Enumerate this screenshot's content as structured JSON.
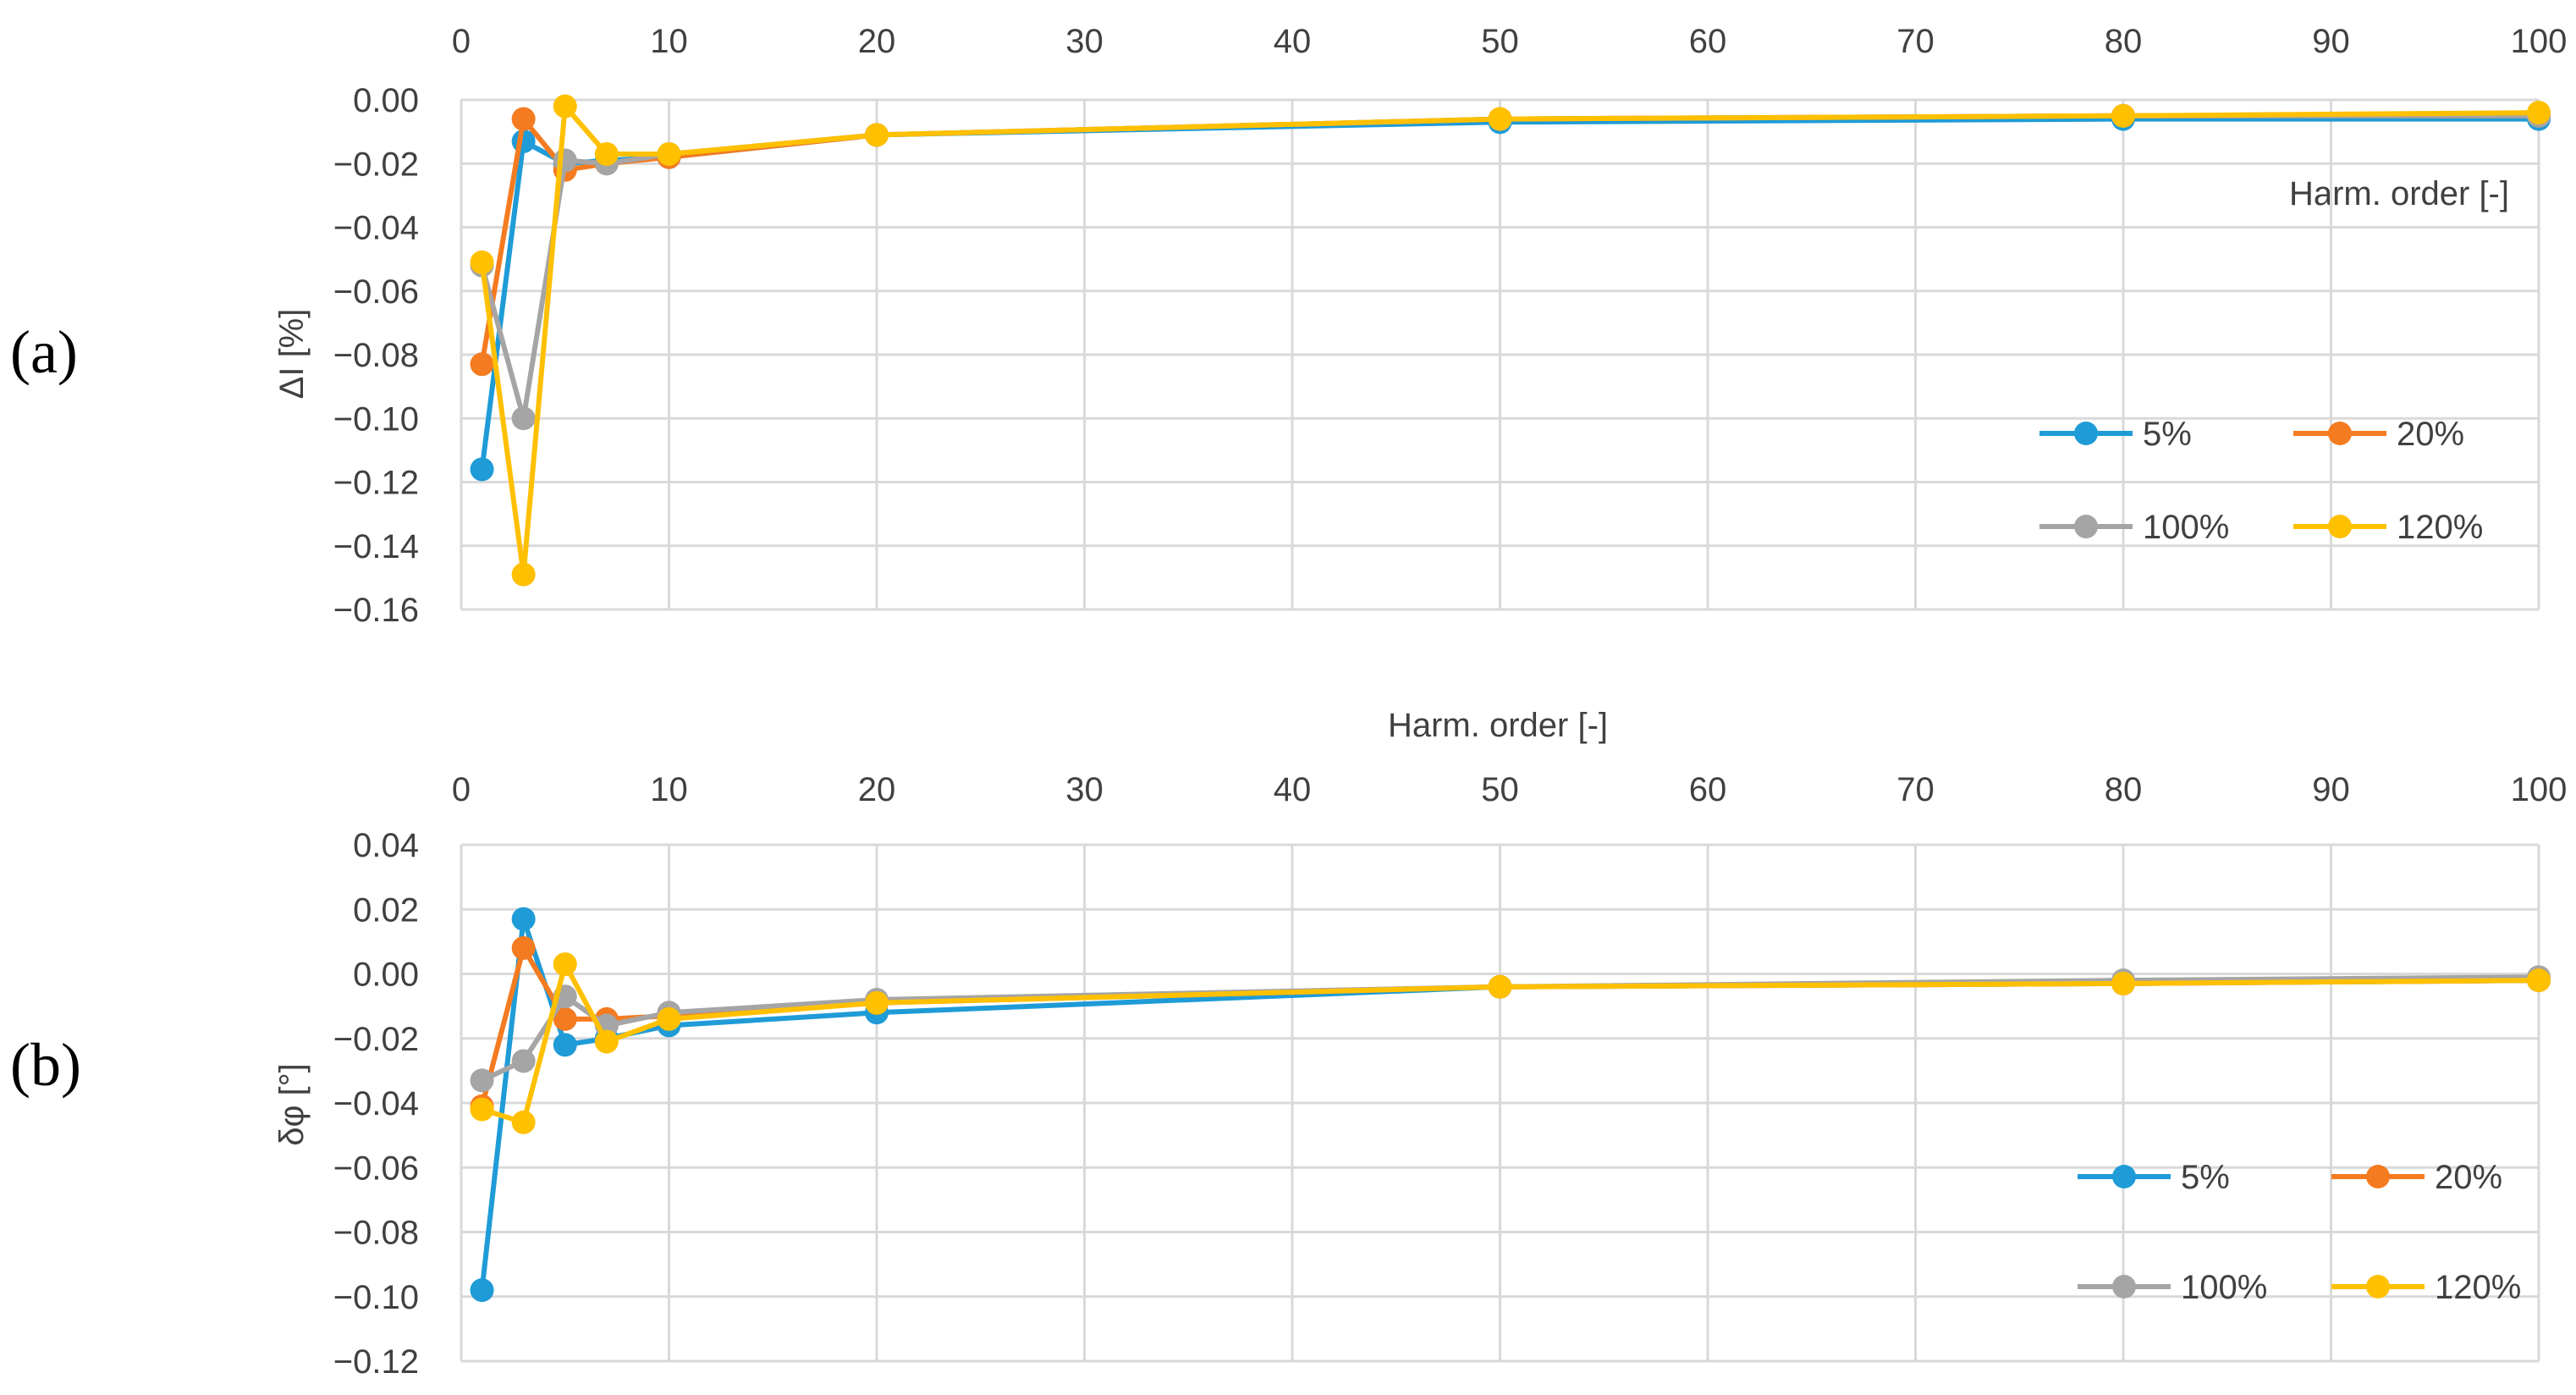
{
  "chart_data": [
    {
      "type": "line",
      "panel_label": "(a)",
      "title": "",
      "xlabel": "Harm. order [-]",
      "ylabel": "ΔI [%]",
      "xlim": [
        0,
        100
      ],
      "ylim": [
        -0.16,
        0.0
      ],
      "x_axis_position": "top",
      "grid": true,
      "legend_position": "bottom-right",
      "x_ticks": [
        0,
        10,
        20,
        30,
        40,
        50,
        60,
        70,
        80,
        90,
        100
      ],
      "x_tick_labels": [
        "0",
        "10",
        "20",
        "30",
        "40",
        "50",
        "60",
        "70",
        "80",
        "90",
        "100"
      ],
      "y_ticks": [
        0.0,
        -0.02,
        -0.04,
        -0.06,
        -0.08,
        -0.1,
        -0.12,
        -0.14,
        -0.16
      ],
      "y_tick_labels": [
        "0.00",
        "−0.02",
        "−0.04",
        "−0.06",
        "−0.08",
        "−0.10",
        "−0.12",
        "−0.14",
        "−0.16"
      ],
      "x": [
        1,
        3,
        5,
        7,
        10,
        20,
        50,
        80,
        100
      ],
      "series": [
        {
          "name": "5%",
          "color": "#1f9bd7",
          "values": [
            -0.116,
            -0.013,
            -0.02,
            -0.019,
            -0.018,
            -0.011,
            -0.007,
            -0.006,
            -0.006
          ]
        },
        {
          "name": "20%",
          "color": "#f47b20",
          "values": [
            -0.083,
            -0.006,
            -0.022,
            -0.02,
            -0.018,
            -0.011,
            -0.006,
            -0.005,
            -0.005
          ]
        },
        {
          "name": "100%",
          "color": "#a5a5a5",
          "values": [
            -0.052,
            -0.1,
            -0.019,
            -0.02,
            -0.017,
            -0.011,
            -0.006,
            -0.005,
            -0.005
          ]
        },
        {
          "name": "120%",
          "color": "#ffc000",
          "values": [
            -0.051,
            -0.149,
            -0.002,
            -0.017,
            -0.017,
            -0.011,
            -0.006,
            -0.005,
            -0.004
          ]
        }
      ]
    },
    {
      "type": "line",
      "panel_label": "(b)",
      "title": "",
      "xlabel": "Harm. order [-]",
      "ylabel": "δφ [°]",
      "xlim": [
        0,
        100
      ],
      "ylim": [
        -0.12,
        0.04
      ],
      "x_axis_position": "top",
      "grid": true,
      "legend_position": "bottom-right",
      "x_ticks": [
        0,
        10,
        20,
        30,
        40,
        50,
        60,
        70,
        80,
        90,
        100
      ],
      "x_tick_labels": [
        "0",
        "10",
        "20",
        "30",
        "40",
        "50",
        "60",
        "70",
        "80",
        "90",
        "100"
      ],
      "y_ticks": [
        0.04,
        0.02,
        0.0,
        -0.02,
        -0.04,
        -0.06,
        -0.08,
        -0.1,
        -0.12
      ],
      "y_tick_labels": [
        "0.04",
        "0.02",
        "0.00",
        "−0.02",
        "−0.04",
        "−0.06",
        "−0.08",
        "−0.10",
        "−0.12"
      ],
      "x": [
        1,
        3,
        5,
        7,
        10,
        20,
        50,
        80,
        100
      ],
      "series": [
        {
          "name": "5%",
          "color": "#1f9bd7",
          "values": [
            -0.098,
            0.017,
            -0.022,
            -0.02,
            -0.016,
            -0.012,
            -0.004,
            -0.003,
            -0.002
          ]
        },
        {
          "name": "20%",
          "color": "#f47b20",
          "values": [
            -0.041,
            0.008,
            -0.014,
            -0.014,
            -0.013,
            -0.009,
            -0.004,
            -0.003,
            -0.002
          ]
        },
        {
          "name": "100%",
          "color": "#a5a5a5",
          "values": [
            -0.033,
            -0.027,
            -0.007,
            -0.016,
            -0.012,
            -0.008,
            -0.004,
            -0.002,
            -0.001
          ]
        },
        {
          "name": "120%",
          "color": "#ffc000",
          "values": [
            -0.042,
            -0.046,
            0.003,
            -0.021,
            -0.014,
            -0.009,
            -0.004,
            -0.003,
            -0.002
          ]
        }
      ]
    }
  ]
}
